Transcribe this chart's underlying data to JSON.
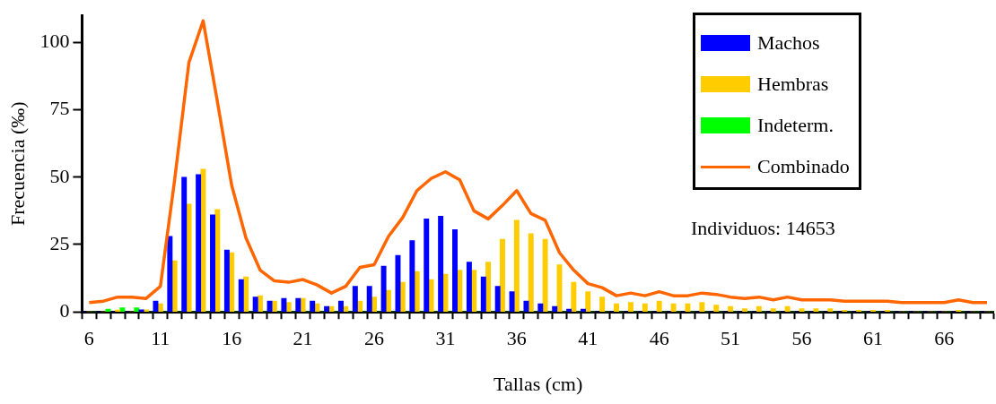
{
  "chart_data": {
    "type": "bar",
    "xlabel": "Tallas (cm)",
    "ylabel": "Frecuencia (‰)",
    "categories": [
      "6",
      null,
      null,
      null,
      null,
      "11",
      null,
      null,
      null,
      null,
      "16",
      null,
      null,
      null,
      null,
      "21",
      null,
      null,
      null,
      null,
      "26",
      null,
      null,
      null,
      null,
      "31",
      null,
      null,
      null,
      null,
      "36",
      null,
      null,
      null,
      null,
      "41",
      null,
      null,
      null,
      null,
      "46",
      null,
      null,
      null,
      null,
      "51",
      null,
      null,
      null,
      null,
      "56",
      null,
      null,
      null,
      null,
      "61",
      null,
      null,
      null,
      null,
      "66",
      null,
      null,
      null
    ],
    "series": [
      {
        "name": "Machos",
        "color": "#0000ff",
        "values": [
          0,
          0,
          0,
          0,
          0.8,
          4,
          28,
          50,
          51,
          36,
          23,
          12,
          5.5,
          4,
          5,
          5,
          4,
          2,
          4,
          9.5,
          9.5,
          17,
          21,
          26.5,
          34.5,
          35.5,
          30.5,
          18.5,
          13,
          9.5,
          7.5,
          4,
          3,
          2,
          1,
          1,
          0,
          0,
          0,
          0,
          0,
          0,
          0,
          0,
          0,
          0,
          0,
          0,
          0,
          0,
          0,
          0,
          0,
          0,
          0,
          0,
          0,
          0,
          0,
          0,
          0,
          0,
          0,
          0
        ]
      },
      {
        "name": "Hembras",
        "color": "#ffcc00",
        "values": [
          0,
          0,
          0.7,
          0,
          0.8,
          3,
          19,
          40,
          53,
          38,
          22,
          13,
          6,
          4,
          3.5,
          5,
          3,
          2,
          2,
          4,
          5.5,
          8,
          11,
          15,
          12,
          14,
          15.5,
          15.5,
          18.5,
          27,
          34,
          29,
          27,
          17.5,
          11,
          7.5,
          5.5,
          3,
          3.5,
          3,
          4,
          3,
          3,
          3.5,
          2.5,
          2,
          1.2,
          2,
          1.2,
          2,
          1.2,
          1.2,
          1.2,
          0.6,
          0.6,
          0.6,
          0.6,
          0,
          0,
          0,
          0,
          0.6,
          0,
          0
        ]
      },
      {
        "name": "Indeterm.",
        "color": "#00ff00",
        "values": [
          0,
          1,
          1.5,
          1.5,
          0,
          0,
          0,
          0,
          0,
          0,
          0,
          0,
          0,
          0,
          0,
          0,
          0,
          0,
          0,
          0,
          0,
          0,
          0,
          0,
          0,
          0,
          0,
          0,
          0,
          0,
          0,
          0,
          0,
          0,
          0,
          0,
          0,
          0,
          0,
          0,
          0,
          0,
          0,
          0,
          0,
          0,
          0,
          0,
          0,
          0,
          0,
          0,
          0,
          0,
          0,
          0,
          0,
          0,
          0,
          0,
          0,
          0,
          0,
          0
        ]
      },
      {
        "name": "Combinado",
        "type": "line",
        "color": "#ff6600",
        "values": [
          3.5,
          4,
          5.5,
          5.5,
          5,
          9.5,
          49,
          92.5,
          108,
          78,
          47,
          27.5,
          15.5,
          11.5,
          11,
          12,
          10,
          7,
          9.5,
          16.5,
          17.5,
          28,
          35,
          45,
          49.5,
          52,
          49,
          37.5,
          34.5,
          39.5,
          45,
          36.5,
          34,
          22,
          15.5,
          10.5,
          9,
          6,
          7,
          6,
          7.5,
          6,
          6,
          7,
          6.5,
          5.5,
          5,
          5.5,
          4.5,
          5.5,
          4.5,
          4.5,
          4.5,
          4,
          4,
          4,
          4,
          3.5,
          3.5,
          3.5,
          3.5,
          4.5,
          3.5,
          3.5
        ]
      }
    ],
    "ylim": [
      0,
      110
    ],
    "yticks": [
      0,
      25,
      50,
      75,
      100
    ],
    "grid": false,
    "legend": "top right",
    "marker": "none",
    "annotations": [
      "Individuos: 14653"
    ]
  }
}
